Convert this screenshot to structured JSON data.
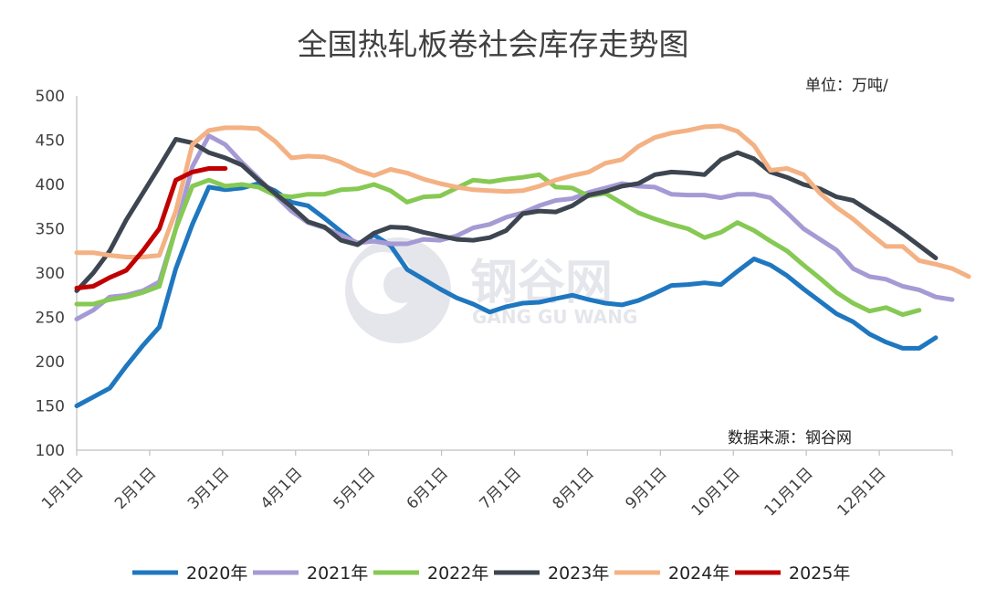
{
  "chart_data": {
    "type": "line",
    "title": "全国热轧板卷社会库存走势图",
    "unit_note": "单位：万吨/",
    "source_note": "数据来源：钢谷网",
    "watermark": {
      "cn": "钢谷网",
      "en": "GANG GU WANG"
    },
    "xlabel": "",
    "ylabel": "",
    "ylim": [
      100,
      500
    ],
    "yticks": [
      100,
      150,
      200,
      250,
      300,
      350,
      400,
      450,
      500
    ],
    "x_month_ticks": [
      "1月1日",
      "2月1日",
      "3月1日",
      "4月1日",
      "5月1日",
      "6月1日",
      "7月1日",
      "8月1日",
      "9月1日",
      "10月1日",
      "11月1日",
      "12月1日"
    ],
    "x_unit": "week",
    "grid": false,
    "legend_position": "bottom",
    "series": [
      {
        "name": "2020年",
        "color": "#1f77c0",
        "values": [
          150,
          160,
          170,
          195,
          218,
          239,
          305,
          355,
          397,
          394,
          396,
          401,
          393,
          380,
          376,
          362,
          347,
          332,
          343,
          331,
          304,
          293,
          282,
          272,
          265,
          256,
          262,
          266,
          267,
          271,
          275,
          270,
          266,
          264,
          269,
          277,
          286,
          287,
          289,
          287,
          302,
          316,
          309,
          297,
          282,
          268,
          254,
          245,
          231,
          222,
          215,
          215,
          227
        ]
      },
      {
        "name": "2021年",
        "color": "#a69ad4",
        "values": [
          248,
          258,
          273,
          275,
          280,
          290,
          350,
          420,
          455,
          445,
          425,
          407,
          388,
          370,
          357,
          351,
          343,
          334,
          336,
          333,
          333,
          338,
          337,
          342,
          351,
          355,
          363,
          368,
          376,
          382,
          384,
          391,
          396,
          401,
          398,
          397,
          389,
          388,
          388,
          385,
          389,
          389,
          385,
          368,
          350,
          338,
          326,
          305,
          296,
          293,
          285,
          281,
          273,
          270
        ]
      },
      {
        "name": "2022年",
        "color": "#86c953",
        "values": [
          265,
          265,
          270,
          273,
          278,
          285,
          350,
          398,
          405,
          398,
          400,
          397,
          388,
          386,
          389,
          389,
          394,
          395,
          400,
          393,
          380,
          386,
          387,
          396,
          405,
          403,
          406,
          408,
          411,
          397,
          396,
          387,
          390,
          379,
          368,
          361,
          355,
          350,
          340,
          346,
          357,
          348,
          336,
          325,
          309,
          294,
          278,
          266,
          257,
          261,
          253,
          258
        ]
      },
      {
        "name": "2023年",
        "color": "#3d4650",
        "values": [
          280,
          300,
          325,
          360,
          390,
          420,
          451,
          447,
          436,
          430,
          422,
          405,
          390,
          375,
          358,
          352,
          337,
          332,
          345,
          352,
          351,
          346,
          342,
          338,
          337,
          340,
          348,
          367,
          370,
          369,
          376,
          388,
          392,
          398,
          401,
          411,
          414,
          413,
          411,
          428,
          436,
          429,
          414,
          408,
          400,
          395,
          386,
          382,
          370,
          358,
          345,
          331,
          317
        ]
      },
      {
        "name": "2024年",
        "color": "#f4b183",
        "values": [
          323,
          323,
          320,
          318,
          318,
          320,
          370,
          445,
          461,
          464,
          464,
          463,
          449,
          430,
          432,
          431,
          425,
          416,
          410,
          417,
          413,
          406,
          401,
          397,
          394,
          393,
          392,
          393,
          398,
          405,
          410,
          414,
          424,
          428,
          443,
          453,
          458,
          461,
          465,
          466,
          460,
          444,
          416,
          418,
          411,
          390,
          374,
          361,
          345,
          330,
          330,
          314,
          310,
          305,
          296
        ]
      },
      {
        "name": "2025年",
        "color": "#c00000",
        "values": [
          283,
          285,
          295,
          303,
          325,
          350,
          405,
          414,
          418,
          418
        ]
      }
    ]
  }
}
